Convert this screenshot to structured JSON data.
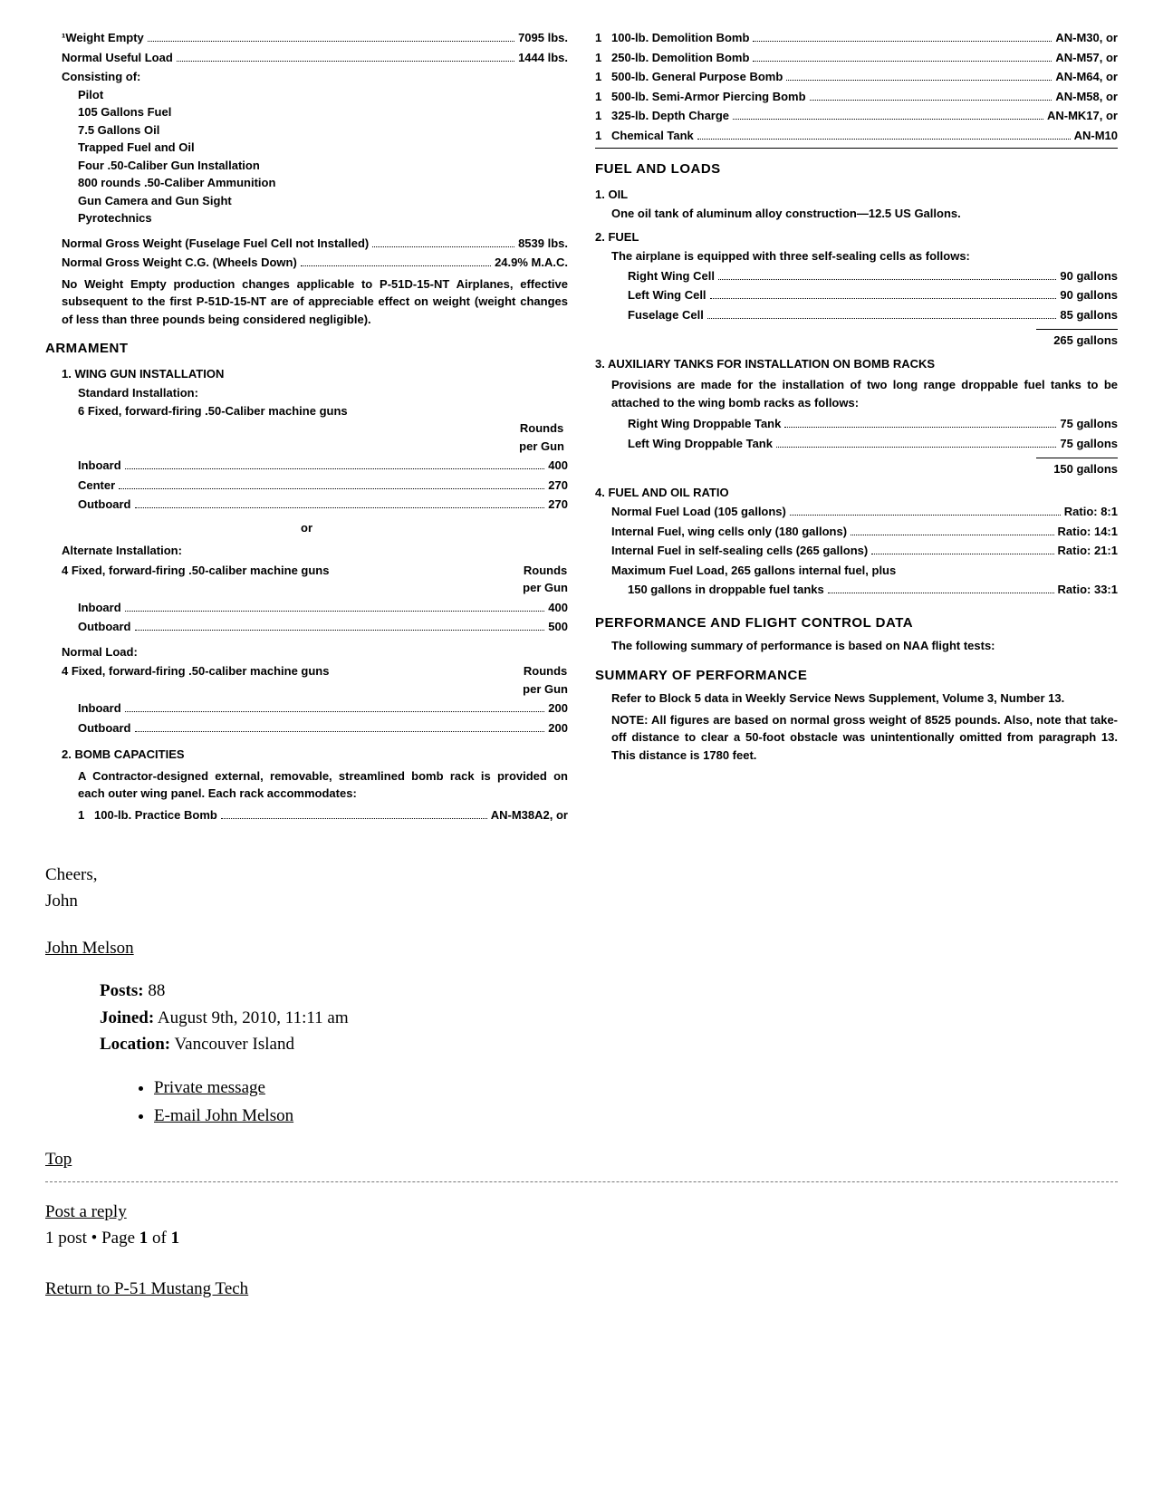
{
  "doc": {
    "weights": {
      "empty_label": "¹Weight Empty",
      "empty_value": "7095 lbs.",
      "useful_label": "Normal Useful Load",
      "useful_value": "1444 lbs.",
      "consisting_label": "Consisting of:",
      "items": [
        "Pilot",
        "105 Gallons Fuel",
        "7.5 Gallons Oil",
        "Trapped Fuel and Oil",
        "Four .50-Caliber Gun Installation",
        "800 rounds .50-Caliber Ammunition",
        "Gun Camera and Gun Sight",
        "Pyrotechnics"
      ],
      "gross_label": "Normal Gross Weight (Fuselage Fuel Cell not Installed)",
      "gross_value": "8539 lbs.",
      "cg_label": "Normal Gross Weight C.G. (Wheels Down)",
      "cg_value": "24.9% M.A.C.",
      "note": "No Weight Empty production changes applicable to P-51D-15-NT Airplanes, effective subsequent to the first P-51D-15-NT are of appreciable effect on weight (weight changes of less than three pounds being considered negligible)."
    },
    "armament": {
      "heading": "ARMAMENT",
      "wing_gun_head": "1.  WING GUN INSTALLATION",
      "std_label": "Standard Installation:",
      "std_desc": "6 Fixed, forward-firing .50-Caliber machine guns",
      "table_head1": "Rounds",
      "table_head2": "per Gun",
      "std_rows": [
        {
          "label": "Inboard",
          "value": "400"
        },
        {
          "label": "Center",
          "value": "270"
        },
        {
          "label": "Outboard",
          "value": "270"
        }
      ],
      "or_label": "or",
      "alt_label": "Alternate Installation:",
      "alt_desc": "4 Fixed, forward-firing .50-caliber machine guns",
      "alt_rows": [
        {
          "label": "Inboard",
          "value": "400"
        },
        {
          "label": "Outboard",
          "value": "500"
        }
      ],
      "norm_label": "Normal Load:",
      "norm_desc": "4 Fixed, forward-firing .50-caliber machine guns",
      "norm_rows": [
        {
          "label": "Inboard",
          "value": "200"
        },
        {
          "label": "Outboard",
          "value": "200"
        }
      ],
      "bomb_head": "2.  BOMB CAPACITIES",
      "bomb_para": "A Contractor-designed external, removable, streamlined bomb rack is provided on each outer wing panel. Each rack accommodates:",
      "bomb_rows": [
        {
          "qty": "1",
          "label": "100-lb. Practice Bomb",
          "value": "AN-M38A2, or"
        },
        {
          "qty": "1",
          "label": "100-lb. Demolition Bomb",
          "value": "AN-M30, or"
        },
        {
          "qty": "1",
          "label": "250-lb. Demolition Bomb",
          "value": "AN-M57, or"
        },
        {
          "qty": "1",
          "label": "500-lb. General Purpose Bomb",
          "value": "AN-M64, or"
        },
        {
          "qty": "1",
          "label": "500-lb. Semi-Armor Piercing Bomb",
          "value": "AN-M58, or"
        },
        {
          "qty": "1",
          "label": "325-lb. Depth Charge",
          "value": "AN-MK17, or"
        },
        {
          "qty": "1",
          "label": "Chemical Tank",
          "value": "AN-M10"
        }
      ]
    },
    "fuel_loads": {
      "heading": "FUEL AND LOADS",
      "oil_head": "1.  OIL",
      "oil_text": "One oil tank of aluminum alloy construction—12.5 US Gallons.",
      "fuel_head": "2.  FUEL",
      "fuel_text": "The airplane is equipped with three self-sealing cells as follows:",
      "fuel_rows": [
        {
          "label": "Right Wing Cell",
          "value": "90 gallons"
        },
        {
          "label": "Left Wing Cell",
          "value": "90 gallons"
        },
        {
          "label": "Fuselage Cell",
          "value": "85 gallons"
        }
      ],
      "fuel_total": "265 gallons",
      "aux_head": "3.  AUXILIARY TANKS FOR INSTALLATION ON BOMB RACKS",
      "aux_text": "Provisions are made for the installation of two long range droppable fuel tanks to be attached to the wing bomb racks as follows:",
      "aux_rows": [
        {
          "label": "Right Wing Droppable Tank",
          "value": "75 gallons"
        },
        {
          "label": "Left Wing Droppable Tank",
          "value": "75 gallons"
        }
      ],
      "aux_total": "150 gallons",
      "ratio_head": "4.  FUEL AND OIL RATIO",
      "ratio_rows": [
        {
          "label": "Normal Fuel Load (105 gallons)",
          "value": "Ratio:   8:1"
        },
        {
          "label": "Internal Fuel, wing cells only (180 gallons)",
          "value": "Ratio: 14:1"
        },
        {
          "label": "Internal Fuel in self-sealing cells (265 gallons)",
          "value": "Ratio: 21:1"
        }
      ],
      "ratio_extra_label": "Maximum Fuel Load, 265 gallons internal fuel, plus",
      "ratio_extra_row": {
        "label": "150 gallons in droppable fuel tanks",
        "value": "Ratio: 33:1"
      }
    },
    "perf": {
      "heading": "PERFORMANCE AND FLIGHT CONTROL DATA",
      "intro": "The following summary of performance is based on NAA flight tests:",
      "sum_head": "SUMMARY OF PERFORMANCE",
      "sum_p1": "Refer to Block 5 data in Weekly Service News Supplement, Volume 3, Number 13.",
      "sum_p2": "NOTE: All figures are based on normal gross weight of 8525 pounds. Also, note that take-off distance to clear a 50-foot obstacle was unintentionally omitted from paragraph 13. This distance is 1780 feet."
    }
  },
  "forum": {
    "signoff1": "Cheers,",
    "signoff2": "John",
    "username": "John Melson",
    "posts_label": "Posts:",
    "posts_value": " 88",
    "joined_label": "Joined:",
    "joined_value": " August 9th, 2010, 11:11 am",
    "location_label": "Location:",
    "location_value": " Vancouver Island",
    "link_pm": "Private message",
    "link_email": "E-mail John Melson",
    "top_link": "Top",
    "post_reply": "Post a reply",
    "page_info_a": "1 post • Page ",
    "page_info_b": "1",
    "page_info_c": " of ",
    "page_info_d": "1",
    "return_link": "Return to P-51 Mustang Tech"
  }
}
